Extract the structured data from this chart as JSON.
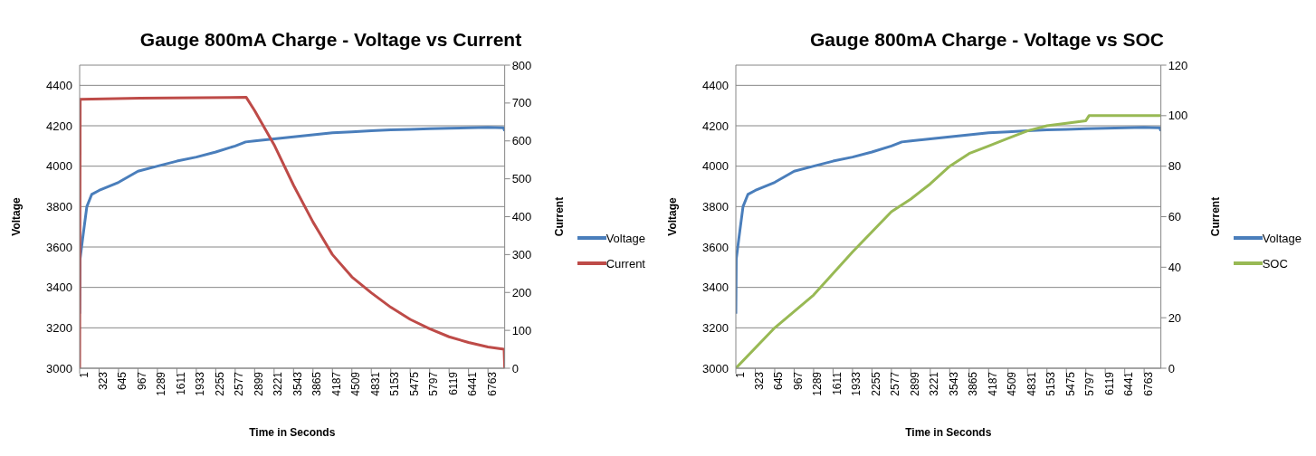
{
  "chart_data": [
    {
      "type": "line",
      "title": "Gauge 800mA Charge - Voltage vs Current",
      "xlabel": "Time in Seconds",
      "ylabel": "Voltage",
      "y2label": "Current",
      "xlim": [
        1,
        7040
      ],
      "xticks": [
        1,
        323,
        645,
        967,
        1289,
        1611,
        1933,
        2255,
        2577,
        2899,
        3221,
        3543,
        3865,
        4187,
        4509,
        4831,
        5153,
        5475,
        5797,
        6119,
        6441,
        6763
      ],
      "ylim": [
        3000,
        4500
      ],
      "yticks": [
        3000,
        3200,
        3400,
        3600,
        3800,
        4000,
        4200,
        4400
      ],
      "y2lim": [
        0,
        800
      ],
      "y2ticks": [
        0,
        100,
        200,
        300,
        400,
        500,
        600,
        700,
        800
      ],
      "grid": "y",
      "legend": "right",
      "marker": "none",
      "line_style": "solid",
      "series": [
        {
          "name": "Voltage",
          "color": "#4a7ebb",
          "x": [
            1,
            8,
            50,
            120,
            200,
            323,
            645,
            967,
            1289,
            1611,
            1933,
            2255,
            2577,
            2750,
            2899,
            3221,
            3543,
            3865,
            4187,
            4509,
            4831,
            5153,
            5475,
            5797,
            6119,
            6441,
            6763,
            7020,
            7040
          ],
          "values": [
            3270,
            3540,
            3640,
            3800,
            3860,
            3880,
            3920,
            3975,
            4000,
            4025,
            4045,
            4070,
            4100,
            4120,
            4125,
            4135,
            4145,
            4155,
            4165,
            4170,
            4175,
            4180,
            4182,
            4185,
            4188,
            4190,
            4192,
            4190,
            4175
          ]
        },
        {
          "name": "Current",
          "color": "#be4b48",
          "axis": "y2",
          "x": [
            1,
            10,
            1000,
            2000,
            2760,
            2899,
            3221,
            3543,
            3865,
            4187,
            4509,
            4831,
            5153,
            5475,
            5797,
            6119,
            6441,
            6763,
            7030,
            7040
          ],
          "values": [
            0,
            710,
            713,
            714,
            715,
            680,
            590,
            483,
            386,
            300,
            241,
            199,
            161,
            129,
            104,
            83,
            68,
            56,
            50,
            0
          ]
        }
      ]
    },
    {
      "type": "line",
      "title": "Gauge 800mA Charge  - Voltage vs SOC",
      "xlabel": "Time in Seconds",
      "ylabel": "Voltage",
      "y2label": "Current",
      "xlim": [
        1,
        7040
      ],
      "xticks": [
        1,
        323,
        645,
        967,
        1289,
        1611,
        1933,
        2255,
        2577,
        2899,
        3221,
        3543,
        3865,
        4187,
        4509,
        4831,
        5153,
        5475,
        5797,
        6119,
        6441,
        6763
      ],
      "ylim": [
        3000,
        4500
      ],
      "yticks": [
        3000,
        3200,
        3400,
        3600,
        3800,
        4000,
        4200,
        4400
      ],
      "y2lim": [
        0,
        120
      ],
      "y2ticks": [
        0,
        20,
        40,
        60,
        80,
        100,
        120
      ],
      "grid": "y",
      "legend": "right",
      "marker": "none",
      "line_style": "solid",
      "series": [
        {
          "name": "Voltage",
          "color": "#4a7ebb",
          "x": [
            1,
            8,
            50,
            120,
            200,
            323,
            645,
            967,
            1289,
            1611,
            1933,
            2255,
            2577,
            2750,
            2899,
            3221,
            3543,
            3865,
            4187,
            4509,
            4831,
            5153,
            5475,
            5797,
            6119,
            6441,
            6763,
            7020,
            7040
          ],
          "values": [
            3270,
            3540,
            3640,
            3800,
            3860,
            3880,
            3920,
            3975,
            4000,
            4025,
            4045,
            4070,
            4100,
            4120,
            4125,
            4135,
            4145,
            4155,
            4165,
            4170,
            4175,
            4180,
            4182,
            4185,
            4188,
            4190,
            4192,
            4190,
            4175
          ]
        },
        {
          "name": "SOC",
          "color": "#98b954",
          "axis": "y2",
          "x": [
            1,
            645,
            1289,
            1933,
            2577,
            2899,
            3221,
            3543,
            3865,
            4187,
            4509,
            4831,
            5153,
            5475,
            5797,
            5850,
            7040
          ],
          "values": [
            0,
            16,
            29,
            46,
            62,
            67,
            73,
            80,
            85,
            88,
            91,
            94,
            96,
            97,
            98,
            100,
            100
          ]
        }
      ]
    }
  ]
}
